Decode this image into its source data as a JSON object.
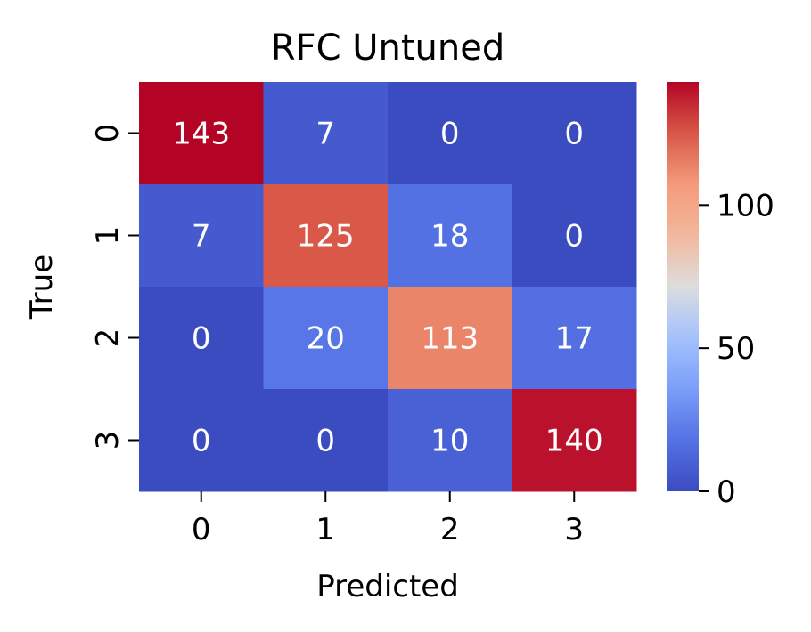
{
  "chart_data": {
    "type": "heatmap",
    "title": "RFC Untuned",
    "xlabel": "Predicted",
    "ylabel": "True",
    "x_categories": [
      "0",
      "1",
      "2",
      "3"
    ],
    "y_categories": [
      "0",
      "1",
      "2",
      "3"
    ],
    "values": [
      [
        143,
        7,
        0,
        0
      ],
      [
        7,
        125,
        18,
        0
      ],
      [
        0,
        20,
        113,
        17
      ],
      [
        0,
        0,
        10,
        140
      ]
    ],
    "colormap": "coolwarm",
    "vmin": 0,
    "vmax": 143,
    "colorbar_ticks": [
      "0",
      "50",
      "100"
    ],
    "colorbar_tick_values": [
      0,
      50,
      100
    ],
    "annotation_color": "#ffffff"
  }
}
